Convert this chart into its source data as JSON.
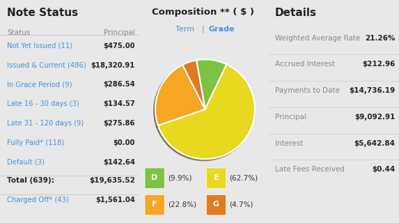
{
  "bg_color": "#e8e8e8",
  "divider_color": "#cccccc",
  "note_status_title": "Note Status",
  "note_col1": "Status",
  "note_col2": "Principal",
  "note_rows": [
    [
      "Not Yet Issued (11)",
      "$475.00"
    ],
    [
      "Issued & Current (486)",
      "$18,320.91"
    ],
    [
      "In Grace Period (9)",
      "$286.54"
    ],
    [
      "Late 16 - 30 days (3)",
      "$134.57"
    ],
    [
      "Late 31 - 120 days (9)",
      "$275.86"
    ],
    [
      "Fully Paid* (118)",
      "$0.00"
    ],
    [
      "Default (3)",
      "$142.64"
    ]
  ],
  "note_total_label": "Total (639):",
  "note_total_value": "$19,635.52",
  "note_extra_label": "Charged Off* (43)",
  "note_extra_value": "$1,561.04",
  "link_color": "#4a90d9",
  "label_color": "#888888",
  "text_dark": "#333333",
  "bold_color": "#222222",
  "composition_title": "Composition ** ( $ )",
  "composition_sub1": "Term",
  "composition_sub2": "Grade",
  "pie_values": [
    9.9,
    62.7,
    22.8,
    4.7
  ],
  "pie_colors": [
    "#7dc242",
    "#e8d820",
    "#f5a623",
    "#e07b20"
  ],
  "legend_labels": [
    "D",
    "E",
    "F",
    "G"
  ],
  "legend_pcts": [
    "(9.9%)",
    "(62.7%)",
    "(22.8%)",
    "(4.7%)"
  ],
  "details_title": "Details",
  "details_rows": [
    [
      "Weighted Average Rate",
      "21.26%"
    ],
    [
      "Accrued Interest",
      "$212.96"
    ],
    [
      "Payments to Date",
      "$14,736.19"
    ],
    [
      "Principal",
      "$9,092.91"
    ],
    [
      "Interest",
      "$5,642.84"
    ],
    [
      "Late Fees Received",
      "$0.44"
    ]
  ]
}
